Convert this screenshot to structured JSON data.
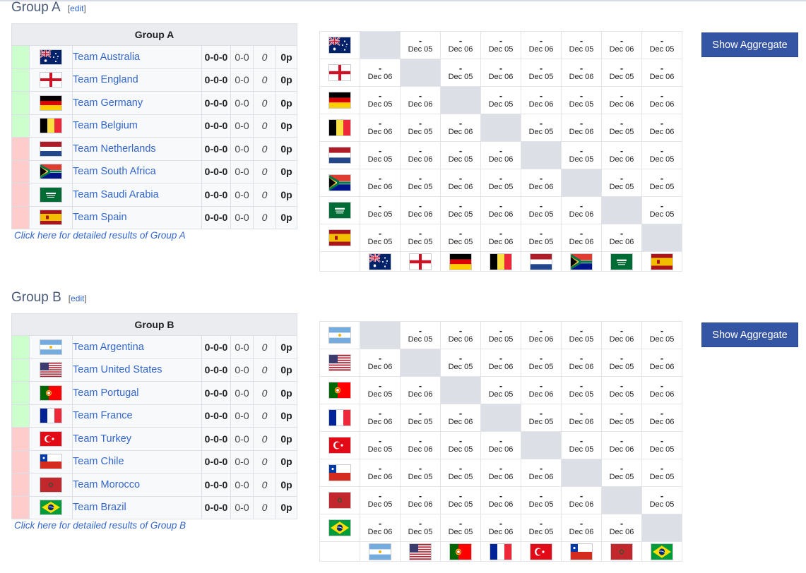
{
  "edit_label": "edit",
  "groups": [
    {
      "heading": "Group A",
      "table_caption": "Group A",
      "button_label": "Show Aggregate",
      "detail_link": "Click here for detailed results of Group A",
      "teams": [
        {
          "name": "Team Australia",
          "flag": "australia",
          "record": "0-0-0",
          "goals": "0-0",
          "diff": "0",
          "points": "0p",
          "status": "advance"
        },
        {
          "name": "Team England",
          "flag": "england",
          "record": "0-0-0",
          "goals": "0-0",
          "diff": "0",
          "points": "0p",
          "status": "advance"
        },
        {
          "name": "Team Germany",
          "flag": "germany",
          "record": "0-0-0",
          "goals": "0-0",
          "diff": "0",
          "points": "0p",
          "status": "advance"
        },
        {
          "name": "Team Belgium",
          "flag": "belgium",
          "record": "0-0-0",
          "goals": "0-0",
          "diff": "0",
          "points": "0p",
          "status": "advance"
        },
        {
          "name": "Team Netherlands",
          "flag": "netherlands",
          "record": "0-0-0",
          "goals": "0-0",
          "diff": "0",
          "points": "0p",
          "status": "eliminated"
        },
        {
          "name": "Team South Africa",
          "flag": "south_africa",
          "record": "0-0-0",
          "goals": "0-0",
          "diff": "0",
          "points": "0p",
          "status": "eliminated"
        },
        {
          "name": "Team Saudi Arabia",
          "flag": "saudi_arabia",
          "record": "0-0-0",
          "goals": "0-0",
          "diff": "0",
          "points": "0p",
          "status": "eliminated"
        },
        {
          "name": "Team Spain",
          "flag": "spain",
          "record": "0-0-0",
          "goals": "0-0",
          "diff": "0",
          "points": "0p",
          "status": "eliminated"
        }
      ],
      "matrix": [
        [
          null,
          "Dec 05",
          "Dec 06",
          "Dec 05",
          "Dec 06",
          "Dec 05",
          "Dec 06",
          "Dec 05"
        ],
        [
          "Dec 06",
          null,
          "Dec 05",
          "Dec 06",
          "Dec 05",
          "Dec 06",
          "Dec 05",
          "Dec 06"
        ],
        [
          "Dec 05",
          "Dec 06",
          null,
          "Dec 05",
          "Dec 06",
          "Dec 05",
          "Dec 06",
          "Dec 06"
        ],
        [
          "Dec 06",
          "Dec 05",
          "Dec 06",
          null,
          "Dec 05",
          "Dec 06",
          "Dec 05",
          "Dec 06"
        ],
        [
          "Dec 05",
          "Dec 06",
          "Dec 05",
          "Dec 06",
          null,
          "Dec 05",
          "Dec 06",
          "Dec 05"
        ],
        [
          "Dec 06",
          "Dec 05",
          "Dec 06",
          "Dec 05",
          "Dec 06",
          null,
          "Dec 05",
          "Dec 05"
        ],
        [
          "Dec 05",
          "Dec 06",
          "Dec 05",
          "Dec 06",
          "Dec 05",
          "Dec 06",
          null,
          "Dec 05"
        ],
        [
          "Dec 05",
          "Dec 05",
          "Dec 05",
          "Dec 06",
          "Dec 05",
          "Dec 06",
          "Dec 06",
          null
        ]
      ]
    },
    {
      "heading": "Group B",
      "table_caption": "Group B",
      "button_label": "Show Aggregate",
      "detail_link": "Click here for detailed results of Group B",
      "teams": [
        {
          "name": "Team Argentina",
          "flag": "argentina",
          "record": "0-0-0",
          "goals": "0-0",
          "diff": "0",
          "points": "0p",
          "status": "advance"
        },
        {
          "name": "Team United States",
          "flag": "usa",
          "record": "0-0-0",
          "goals": "0-0",
          "diff": "0",
          "points": "0p",
          "status": "advance"
        },
        {
          "name": "Team Portugal",
          "flag": "portugal",
          "record": "0-0-0",
          "goals": "0-0",
          "diff": "0",
          "points": "0p",
          "status": "advance"
        },
        {
          "name": "Team France",
          "flag": "france",
          "record": "0-0-0",
          "goals": "0-0",
          "diff": "0",
          "points": "0p",
          "status": "advance"
        },
        {
          "name": "Team Turkey",
          "flag": "turkey",
          "record": "0-0-0",
          "goals": "0-0",
          "diff": "0",
          "points": "0p",
          "status": "eliminated"
        },
        {
          "name": "Team Chile",
          "flag": "chile",
          "record": "0-0-0",
          "goals": "0-0",
          "diff": "0",
          "points": "0p",
          "status": "eliminated"
        },
        {
          "name": "Team Morocco",
          "flag": "morocco",
          "record": "0-0-0",
          "goals": "0-0",
          "diff": "0",
          "points": "0p",
          "status": "eliminated"
        },
        {
          "name": "Team Brazil",
          "flag": "brazil",
          "record": "0-0-0",
          "goals": "0-0",
          "diff": "0",
          "points": "0p",
          "status": "eliminated"
        }
      ],
      "matrix": [
        [
          null,
          "Dec 05",
          "Dec 06",
          "Dec 05",
          "Dec 06",
          "Dec 05",
          "Dec 06",
          "Dec 05"
        ],
        [
          "Dec 06",
          null,
          "Dec 05",
          "Dec 06",
          "Dec 05",
          "Dec 06",
          "Dec 05",
          "Dec 06"
        ],
        [
          "Dec 05",
          "Dec 06",
          null,
          "Dec 05",
          "Dec 06",
          "Dec 05",
          "Dec 05",
          "Dec 06"
        ],
        [
          "Dec 06",
          "Dec 05",
          "Dec 06",
          null,
          "Dec 05",
          "Dec 06",
          "Dec 05",
          "Dec 06"
        ],
        [
          "Dec 05",
          "Dec 06",
          "Dec 05",
          "Dec 06",
          null,
          "Dec 05",
          "Dec 06",
          "Dec 05"
        ],
        [
          "Dec 06",
          "Dec 05",
          "Dec 05",
          "Dec 06",
          "Dec 06",
          null,
          "Dec 05",
          "Dec 05"
        ],
        [
          "Dec 05",
          "Dec 06",
          "Dec 05",
          "Dec 06",
          "Dec 05",
          "Dec 06",
          null,
          "Dec 05"
        ],
        [
          "Dec 06",
          "Dec 05",
          "Dec 05",
          "Dec 06",
          "Dec 05",
          "Dec 06",
          "Dec 06",
          null
        ]
      ]
    }
  ],
  "colors": {
    "advance": "#ccffcc",
    "eliminated": "#ffcccc",
    "link": "#3366cc",
    "button": "#3454a4",
    "diagonal": "#dddfe6"
  }
}
